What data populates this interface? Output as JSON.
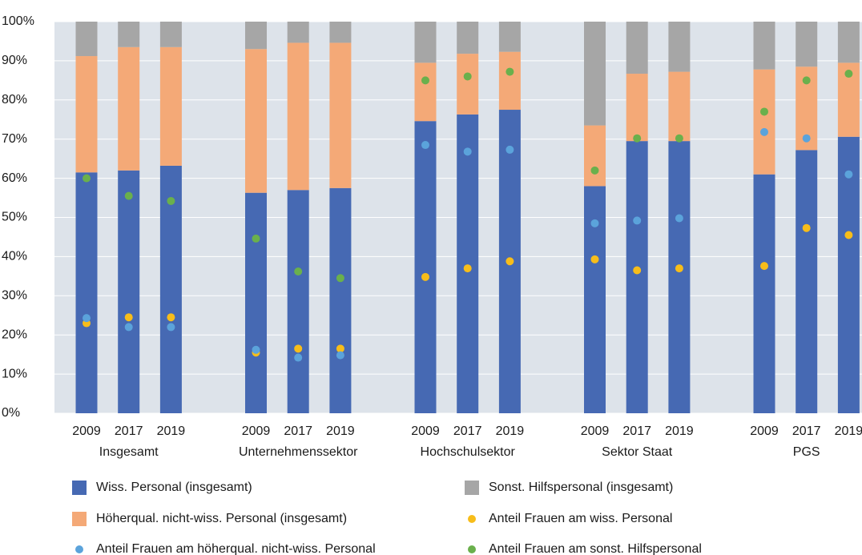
{
  "chart_data": {
    "type": "bar",
    "stacked": true,
    "categories": [
      "2009",
      "2017",
      "2019",
      "2009",
      "2017",
      "2019",
      "2009",
      "2017",
      "2019",
      "2009",
      "2017",
      "2019",
      "2009",
      "2017",
      "2019"
    ],
    "category_groups": [
      "Insgesamt",
      "Unternehmenssektor",
      "Hochschulsektor",
      "Sektor Staat",
      "PGS"
    ],
    "series": [
      {
        "name": "Wiss. Personal (insgesamt)",
        "color": "#4669b3",
        "values": [
          61.5,
          62,
          63.2,
          56.3,
          57,
          57.5,
          74.6,
          76.3,
          77.5,
          58,
          69.5,
          69.5,
          61,
          67.2,
          70.6
        ]
      },
      {
        "name": "Höherqual. nicht-wiss. Personal (insgesamt)",
        "color": "#f4a977",
        "values": [
          29.7,
          31.5,
          30.3,
          36.7,
          37.6,
          37.1,
          14.9,
          15.5,
          14.8,
          15.5,
          17.2,
          17.7,
          26.8,
          21.3,
          18.9
        ]
      },
      {
        "name": "Sonst. Hilfspersonal (insgesamt)",
        "color": "#a6a6a6",
        "values": [
          8.8,
          6.5,
          6.5,
          7,
          5.4,
          5.4,
          10.5,
          8.2,
          7.7,
          26.5,
          13.3,
          12.8,
          12.2,
          11.5,
          10.5
        ]
      }
    ],
    "dot_series": [
      {
        "name": "Anteil Frauen am wiss. Personal",
        "color": "#f7bd1a",
        "values": [
          23,
          24.5,
          24.5,
          15.5,
          16.5,
          16.5,
          34.8,
          37,
          38.8,
          39.3,
          36.5,
          37,
          37.6,
          47.3,
          45.5
        ]
      },
      {
        "name": "Anteil Frauen am höherqual. nicht-wiss. Personal",
        "color": "#5ba3db",
        "values": [
          24.3,
          22,
          22,
          16.2,
          14.2,
          14.8,
          68.5,
          66.8,
          67.3,
          48.5,
          49.2,
          49.8,
          71.8,
          70.2,
          61
        ]
      },
      {
        "name": "Anteil Frauen am sonst. Hilfspersonal",
        "color": "#6ab04c",
        "values": [
          60,
          55.5,
          54.2,
          44.6,
          36.2,
          34.5,
          85,
          86,
          87.2,
          62,
          70.2,
          70.2,
          77,
          85,
          86.7
        ]
      }
    ],
    "ylim": [
      0,
      100
    ],
    "yticks": [
      {
        "value": 0,
        "label": "0%"
      },
      {
        "value": 10,
        "label": "10%"
      },
      {
        "value": 20,
        "label": "20%"
      },
      {
        "value": 30,
        "label": "30%"
      },
      {
        "value": 40,
        "label": "40%"
      },
      {
        "value": 50,
        "label": "50%"
      },
      {
        "value": 60,
        "label": "60%"
      },
      {
        "value": 70,
        "label": "70%"
      },
      {
        "value": 80,
        "label": "80%"
      },
      {
        "value": 90,
        "label": "90%"
      },
      {
        "value": 100,
        "label": "100%"
      }
    ],
    "grid": true,
    "legend": "bottom"
  }
}
